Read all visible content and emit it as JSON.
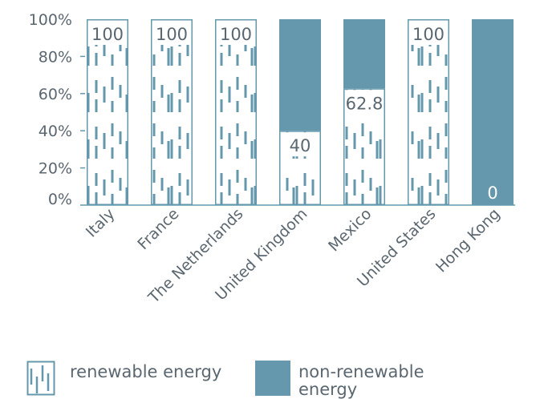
{
  "chart_data": {
    "type": "bar",
    "stacked": true,
    "percent": true,
    "categories": [
      "Italy",
      "France",
      "The Netherlands",
      "United Kingdom",
      "Mexico",
      "United States",
      "Hong Kong"
    ],
    "series": [
      {
        "name": "renewable energy",
        "values": [
          100,
          100,
          100,
          40,
          62.8,
          100,
          0
        ],
        "color": "#6598ad",
        "pattern": "vertical-dashes"
      },
      {
        "name": "non-renewable energy",
        "values": [
          0,
          0,
          0,
          60,
          37.2,
          0,
          100
        ],
        "color": "#6598ad"
      }
    ],
    "data_labels": [
      "100",
      "100",
      "100",
      "40",
      "62.8",
      "100",
      "0"
    ],
    "y_ticks": [
      "0%",
      "20%",
      "40%",
      "60%",
      "80%",
      "100%"
    ],
    "ylim": [
      0,
      100
    ],
    "grid": false,
    "legend_position": "bottom"
  },
  "colors": {
    "bar": "#6598ad",
    "text": "#5b6770",
    "axis": "#6598ad"
  }
}
